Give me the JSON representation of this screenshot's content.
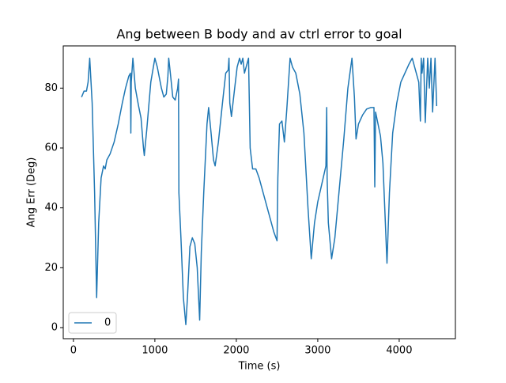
{
  "chart_data": {
    "type": "line",
    "title": "Ang between B body and av ctrl error to goal",
    "x_label": "Time (s)",
    "y_label": "Ang Err (Deg)",
    "xlim": [
      -125,
      4690
    ],
    "ylim": [
      -3.7,
      94.1
    ],
    "xticks": [
      0,
      1000,
      2000,
      3000,
      4000
    ],
    "yticks": [
      0,
      20,
      40,
      60,
      80
    ],
    "legend": "lower left",
    "x": [
      100,
      130,
      160,
      180,
      200,
      230,
      260,
      285,
      310,
      340,
      370,
      390,
      410,
      450,
      500,
      550,
      600,
      640,
      680,
      700,
      705,
      710,
      730,
      760,
      800,
      830,
      860,
      870,
      900,
      950,
      1000,
      1030,
      1080,
      1110,
      1140,
      1160,
      1170,
      1190,
      1220,
      1250,
      1280,
      1290,
      1295,
      1320,
      1350,
      1380,
      1400,
      1430,
      1460,
      1490,
      1520,
      1550,
      1570,
      1600,
      1640,
      1660,
      1690,
      1720,
      1740,
      1780,
      1830,
      1870,
      1900,
      1910,
      1920,
      1940,
      1980,
      2010,
      2040,
      2060,
      2080,
      2100,
      2130,
      2150,
      2170,
      2200,
      2240,
      2280,
      2330,
      2400,
      2460,
      2500,
      2510,
      2530,
      2560,
      2590,
      2620,
      2660,
      2690,
      2730,
      2780,
      2830,
      2880,
      2920,
      2960,
      3000,
      3050,
      3100,
      3110,
      3115,
      3130,
      3170,
      3210,
      3260,
      3320,
      3370,
      3420,
      3450,
      3470,
      3500,
      3550,
      3600,
      3650,
      3690,
      3700,
      3710,
      3740,
      3770,
      3800,
      3830,
      3850,
      3880,
      3920,
      3970,
      4020,
      4070,
      4120,
      4160,
      4200,
      4240,
      4260,
      4270,
      4280,
      4300,
      4320,
      4350,
      4370,
      4390,
      4410,
      4440,
      4460
    ],
    "series": [
      {
        "name": "0",
        "color": "#1f77b4",
        "values": [
          77,
          79,
          79,
          82,
          90,
          75,
          45,
          10,
          35,
          50,
          54,
          53,
          56,
          58,
          62,
          68,
          75,
          80,
          84,
          85,
          65,
          82,
          90,
          80,
          74,
          70,
          60,
          57.5,
          66,
          82,
          90,
          87,
          80,
          77,
          78,
          84,
          90,
          85,
          77,
          76,
          80,
          83,
          45,
          30,
          10,
          1,
          10,
          27,
          30,
          28,
          20,
          2.5,
          25,
          45,
          68,
          73.5,
          65,
          56,
          54,
          62,
          75,
          85,
          86,
          90,
          75,
          70.5,
          80,
          87,
          90,
          88,
          90,
          85,
          88,
          90,
          60,
          53,
          53,
          50,
          45,
          38,
          32,
          29,
          50,
          68,
          69,
          62,
          73,
          90,
          87,
          85,
          78,
          65,
          40,
          23,
          35,
          42,
          48,
          54,
          73.5,
          50,
          35,
          23,
          30,
          45,
          63,
          80,
          90,
          77,
          63,
          68,
          71,
          73,
          73.5,
          73.5,
          47,
          72,
          68,
          64,
          55,
          35,
          21.5,
          45,
          65,
          75,
          82,
          85,
          88,
          90,
          86,
          82,
          69,
          90,
          85,
          90,
          68.5,
          90,
          80,
          90,
          72,
          90,
          74
        ]
      }
    ]
  }
}
